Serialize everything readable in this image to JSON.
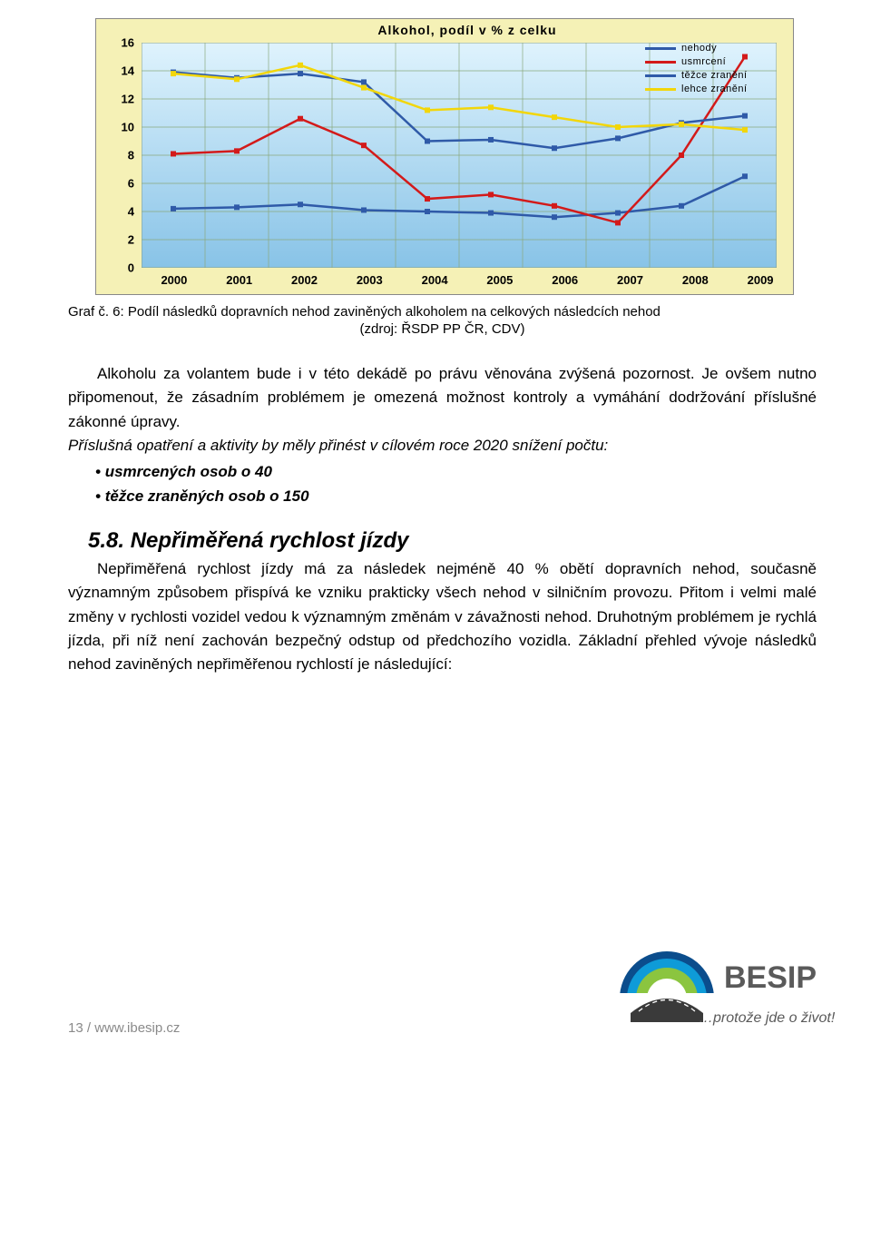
{
  "chart": {
    "type": "line",
    "title": "Alkohol, podíl v % z celku",
    "title_fontsize": 14,
    "background_gradient": [
      "#dff3fd",
      "#88c3e7"
    ],
    "outer_background": "#f5f1b6",
    "grid_color": "#8aa87e",
    "xlabels": [
      "2000",
      "2001",
      "2002",
      "2003",
      "2004",
      "2005",
      "2006",
      "2007",
      "2008",
      "2009"
    ],
    "ylim": [
      0,
      16
    ],
    "ytick_step": 2,
    "ylabels": [
      "0",
      "2",
      "4",
      "6",
      "8",
      "10",
      "12",
      "14",
      "16"
    ],
    "axis_font_color": "#000000",
    "line_width": 2.5,
    "series": [
      {
        "name": "nehody",
        "color": "#2f5aa8",
        "values": [
          4.2,
          4.3,
          4.5,
          4.1,
          4.0,
          3.9,
          3.6,
          3.9,
          4.4,
          6.5
        ]
      },
      {
        "name": "usmrcení",
        "color": "#d31a1a",
        "values": [
          8.1,
          8.3,
          10.6,
          8.7,
          4.9,
          5.2,
          4.4,
          3.2,
          8.0,
          15.0
        ]
      },
      {
        "name": "těžce zranění",
        "color": "#2f5aa8",
        "values": [
          13.9,
          13.5,
          13.8,
          13.2,
          9.0,
          9.1,
          8.5,
          9.2,
          10.3,
          10.8
        ]
      },
      {
        "name": "lehce zranění",
        "color": "#f2d60a",
        "values": [
          13.8,
          13.4,
          14.4,
          12.8,
          11.2,
          11.4,
          10.7,
          10.0,
          10.2,
          9.8
        ]
      }
    ],
    "legend_position": "top-right"
  },
  "caption": "Graf č. 6: Podíl následků dopravních nehod zaviněných alkoholem na celkových následcích nehod",
  "caption_sub": "(zdroj: ŘSDP PP ČR, CDV)",
  "para1": "Alkoholu za volantem bude i v této dekádě po právu věnována zvýšená pozornost. Je ovšem nutno připomenout, že zásadním problémem je omezená možnost kontroly a vymáhání dodržování příslušné zákonné úpravy.",
  "para2": "Příslušná opatření a aktivity by měly přinést v cílovém roce 2020 snížení počtu:",
  "bullets": [
    "usmrcených osob o 40",
    "těžce zraněných osob o 150"
  ],
  "section_num": "5.8.",
  "section_title": "Nepřiměřená rychlost jízdy",
  "para3": "Nepřiměřená rychlost jízdy má za následek nejméně 40 % obětí dopravních nehod, současně významným způsobem přispívá ke vzniku prakticky všech nehod v silničním provozu. Přitom i velmi malé změny v rychlosti vozidel vedou k významným změnám v závažnosti nehod. Druhotným problémem je rychlá jízda, při níž není zachován bezpečný odstup od předchozího vozidla. Základní přehled vývoje následků nehod zaviněných nepřiměřenou rychlostí je následující:",
  "page_number": "13",
  "page_url": "www.ibesip.cz",
  "besip": {
    "name": "BESIP",
    "tagline": "…protože jde o život!",
    "arc_colors": [
      "#0b4d8c",
      "#0e9bd8",
      "#8bc53f"
    ],
    "road_color": "#3a3a3a",
    "text_color": "#5a5a5a"
  }
}
